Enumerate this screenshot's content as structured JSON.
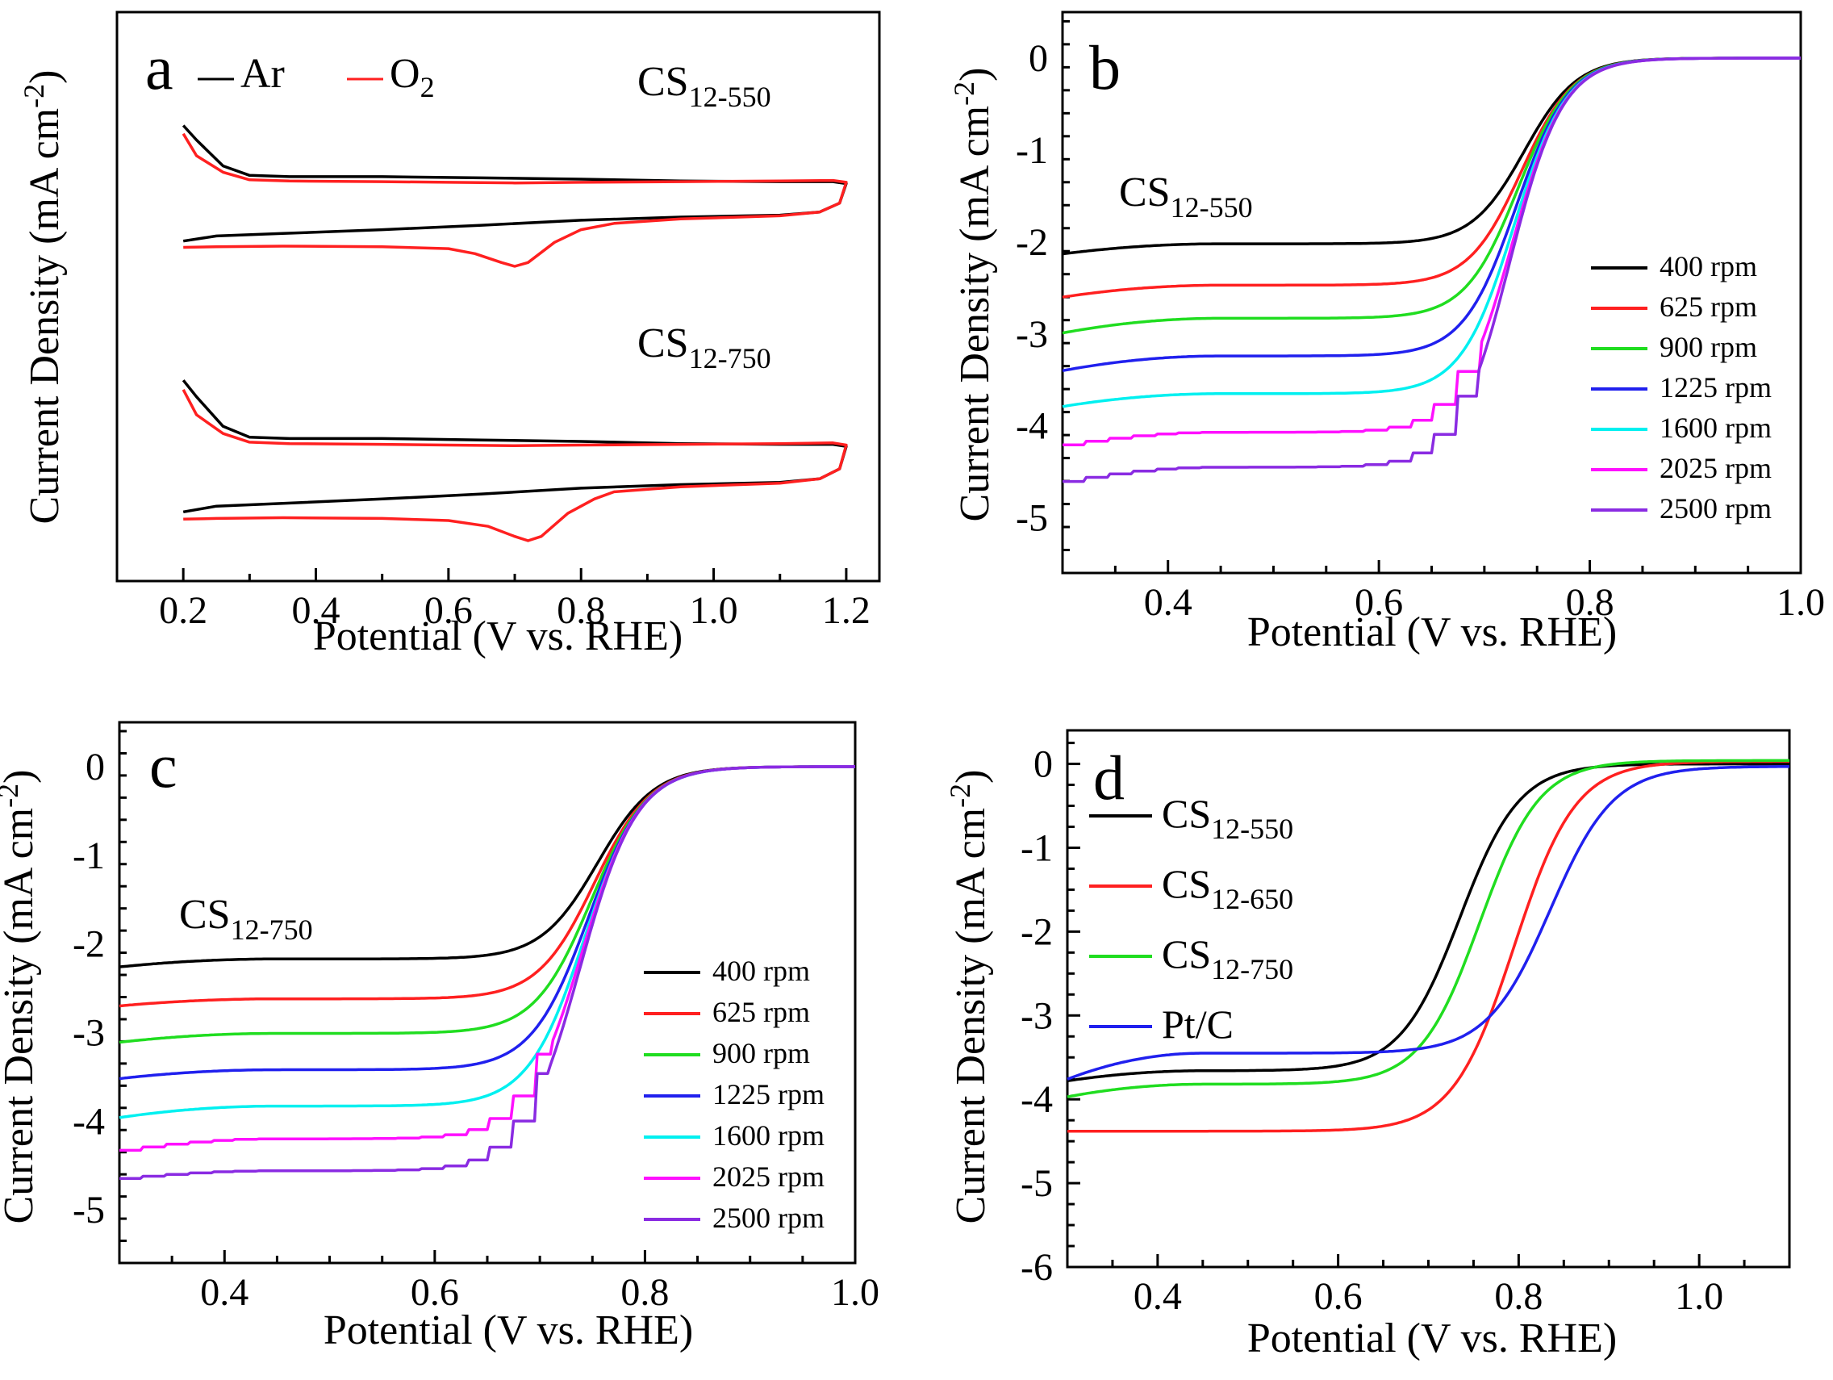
{
  "colors": {
    "black": "#000000",
    "red": "#ff2020",
    "green": "#20dd20",
    "blue": "#2020ee",
    "cyan": "#00f0f0",
    "magenta": "#ff10ff",
    "purple": "#8a2be2"
  },
  "chart_data": [
    {
      "panel": "a",
      "type": "line",
      "xlabel": "Potential (V vs. RHE)",
      "ylabel": "Current Density (mA cm",
      "ylabel_sup": "-2",
      "xlim": [
        0.1,
        1.25
      ],
      "xticks": [
        "0.2",
        "0.4",
        "0.6",
        "0.8",
        "1.0",
        "1.2"
      ],
      "legend": [
        {
          "label": "Ar",
          "color": "#000000"
        },
        {
          "label": "O",
          "sub": "2",
          "color": "#ff2020"
        }
      ],
      "samples": [
        {
          "label": "CS",
          "sub": "12-550"
        },
        {
          "label": "CS",
          "sub": "12-750"
        }
      ],
      "series": [
        {
          "name": "CS12-550 Ar",
          "color": "#000000",
          "x": [
            0.2,
            0.22,
            0.26,
            0.3,
            0.36,
            0.5,
            0.65,
            0.8,
            0.95,
            1.1,
            1.18,
            1.2,
            1.19,
            1.16,
            1.1,
            0.95,
            0.8,
            0.65,
            0.5,
            0.35,
            0.25,
            0.2
          ],
          "y": [
            1.73,
            1.5,
            1.09,
            0.94,
            0.92,
            0.92,
            0.9,
            0.88,
            0.85,
            0.84,
            0.84,
            0.81,
            0.5,
            0.36,
            0.31,
            0.28,
            0.23,
            0.15,
            0.08,
            0.02,
            -0.02,
            -0.1
          ]
        },
        {
          "name": "CS12-550 O2",
          "color": "#ff2020",
          "x": [
            0.2,
            0.22,
            0.26,
            0.3,
            0.36,
            0.5,
            0.6,
            0.7,
            0.8,
            0.95,
            1.1,
            1.18,
            1.2,
            1.19,
            1.16,
            1.1,
            0.95,
            0.85,
            0.8,
            0.76,
            0.72,
            0.7,
            0.68,
            0.64,
            0.6,
            0.5,
            0.35,
            0.25,
            0.2
          ],
          "y": [
            1.6,
            1.25,
            0.99,
            0.87,
            0.85,
            0.84,
            0.83,
            0.82,
            0.83,
            0.84,
            0.85,
            0.86,
            0.83,
            0.5,
            0.36,
            0.3,
            0.25,
            0.18,
            0.08,
            -0.12,
            -0.44,
            -0.5,
            -0.44,
            -0.3,
            -0.22,
            -0.19,
            -0.18,
            -0.19,
            -0.2
          ]
        },
        {
          "name": "CS12-750 Ar",
          "color": "#000000",
          "x": [
            0.2,
            0.22,
            0.26,
            0.3,
            0.36,
            0.5,
            0.65,
            0.8,
            0.95,
            1.1,
            1.18,
            1.2,
            1.19,
            1.16,
            1.1,
            0.95,
            0.8,
            0.65,
            0.5,
            0.35,
            0.25,
            0.2
          ],
          "y": [
            1.73,
            1.5,
            1.09,
            0.94,
            0.92,
            0.92,
            0.9,
            0.88,
            0.85,
            0.84,
            0.84,
            0.81,
            0.5,
            0.36,
            0.31,
            0.28,
            0.23,
            0.15,
            0.08,
            0.02,
            -0.02,
            -0.1
          ]
        },
        {
          "name": "CS12-750 O2",
          "color": "#ff2020",
          "x": [
            0.2,
            0.22,
            0.26,
            0.3,
            0.36,
            0.5,
            0.6,
            0.7,
            0.8,
            0.95,
            1.1,
            1.18,
            1.2,
            1.19,
            1.16,
            1.1,
            0.95,
            0.85,
            0.82,
            0.78,
            0.74,
            0.72,
            0.7,
            0.66,
            0.6,
            0.5,
            0.35,
            0.25,
            0.2
          ],
          "y": [
            1.6,
            1.25,
            0.99,
            0.87,
            0.85,
            0.84,
            0.83,
            0.82,
            0.83,
            0.84,
            0.85,
            0.86,
            0.83,
            0.5,
            0.36,
            0.3,
            0.25,
            0.18,
            0.08,
            -0.12,
            -0.44,
            -0.5,
            -0.44,
            -0.3,
            -0.22,
            -0.19,
            -0.18,
            -0.19,
            -0.2
          ]
        }
      ]
    },
    {
      "panel": "b",
      "type": "line",
      "xlabel": "Potential (V vs. RHE)",
      "ylabel": "Current Density (mA cm",
      "ylabel_sup": "-2",
      "xlim": [
        0.3,
        1.0
      ],
      "ylim": [
        -5.6,
        0.5
      ],
      "xticks": [
        "0.4",
        "0.6",
        "0.8",
        "1.0"
      ],
      "yticks": [
        "0",
        "-1",
        "-2",
        "-3",
        "-4",
        "-5"
      ],
      "sample": {
        "label": "CS",
        "sub": "12-550"
      },
      "series": [
        {
          "name": "400 rpm",
          "color": "#000000",
          "y0": -2.13,
          "plateau": -2.02,
          "e_half": 0.738,
          "width": 0.025,
          "step": false
        },
        {
          "name": "625 rpm",
          "color": "#ff2020",
          "y0": -2.6,
          "plateau": -2.47,
          "e_half": 0.735,
          "width": 0.025,
          "step": false
        },
        {
          "name": "900 rpm",
          "color": "#20dd20",
          "y0": -2.99,
          "plateau": -2.83,
          "e_half": 0.732,
          "width": 0.025,
          "step": false
        },
        {
          "name": "1225 rpm",
          "color": "#2020ee",
          "y0": -3.4,
          "plateau": -3.24,
          "e_half": 0.73,
          "width": 0.025,
          "step": false
        },
        {
          "name": "1600 rpm",
          "color": "#00f0f0",
          "y0": -3.79,
          "plateau": -3.65,
          "e_half": 0.728,
          "width": 0.025,
          "step": false
        },
        {
          "name": "2025 rpm",
          "color": "#ff10ff",
          "y0": -4.23,
          "plateau": -4.07,
          "e_half": 0.726,
          "width": 0.025,
          "step": true
        },
        {
          "name": "2500 rpm",
          "color": "#8a2be2",
          "y0": -4.63,
          "plateau": -4.45,
          "e_half": 0.724,
          "width": 0.025,
          "step": true
        }
      ]
    },
    {
      "panel": "c",
      "type": "line",
      "xlabel": "Potential (V vs. RHE)",
      "ylabel": "Current Density (mA cm",
      "ylabel_sup": "-2",
      "xlim": [
        0.3,
        1.0
      ],
      "ylim": [
        -5.6,
        0.5
      ],
      "xticks": [
        "0.4",
        "0.6",
        "0.8",
        "1.0"
      ],
      "yticks": [
        "0",
        "-1",
        "-2",
        "-3",
        "-4",
        "-5"
      ],
      "sample": {
        "label": "CS",
        "sub": "12-750"
      },
      "series": [
        {
          "name": "400 rpm",
          "color": "#000000",
          "y0": -2.26,
          "plateau": -2.17,
          "e_half": 0.755,
          "width": 0.027,
          "step": false
        },
        {
          "name": "625 rpm",
          "color": "#ff2020",
          "y0": -2.7,
          "plateau": -2.62,
          "e_half": 0.752,
          "width": 0.027,
          "step": false
        },
        {
          "name": "900 rpm",
          "color": "#20dd20",
          "y0": -3.11,
          "plateau": -3.01,
          "e_half": 0.749,
          "width": 0.027,
          "step": false
        },
        {
          "name": "1225 rpm",
          "color": "#2020ee",
          "y0": -3.52,
          "plateau": -3.42,
          "e_half": 0.746,
          "width": 0.027,
          "step": false
        },
        {
          "name": "1600 rpm",
          "color": "#00f0f0",
          "y0": -3.96,
          "plateau": -3.83,
          "e_half": 0.743,
          "width": 0.027,
          "step": false
        },
        {
          "name": "2025 rpm",
          "color": "#ff10ff",
          "y0": -4.35,
          "plateau": -4.2,
          "e_half": 0.74,
          "width": 0.027,
          "step": true
        },
        {
          "name": "2500 rpm",
          "color": "#8a2be2",
          "y0": -4.66,
          "plateau": -4.56,
          "e_half": 0.738,
          "width": 0.027,
          "step": true
        }
      ]
    },
    {
      "panel": "d",
      "type": "line",
      "xlabel": "Potential (V vs. RHE)",
      "ylabel": "Current Density (mA cm",
      "ylabel_sup": "-2",
      "xlim": [
        0.3,
        1.1
      ],
      "ylim": [
        -6,
        0.4
      ],
      "xticks": [
        "0.4",
        "0.6",
        "0.8",
        "1.0"
      ],
      "yticks": [
        "0",
        "-1",
        "-2",
        "-3",
        "-4",
        "-5",
        "-6"
      ],
      "legend": [
        {
          "label": "CS",
          "sub": "12-550",
          "color": "#000000"
        },
        {
          "label": "CS",
          "sub": "12-650",
          "color": "#ff2020"
        },
        {
          "label": "CS",
          "sub": "12-750",
          "color": "#20dd20"
        },
        {
          "label": "Pt/C",
          "sub": "",
          "color": "#2020ee"
        }
      ],
      "series": [
        {
          "name": "CS12-550",
          "color": "#000000",
          "y0": -3.78,
          "plateau": -3.66,
          "e_half": 0.735,
          "width": 0.033,
          "tail": 0.0
        },
        {
          "name": "CS12-650",
          "color": "#ff2020",
          "y0": -4.38,
          "plateau": -4.38,
          "e_half": 0.795,
          "width": 0.034,
          "tail": 0.03
        },
        {
          "name": "CS12-750",
          "color": "#20dd20",
          "y0": -3.97,
          "plateau": -3.82,
          "e_half": 0.757,
          "width": 0.033,
          "tail": 0.04
        },
        {
          "name": "Pt/C",
          "color": "#2020ee",
          "y0": -3.76,
          "plateau": -3.45,
          "e_half": 0.835,
          "width": 0.035,
          "tail": -0.03
        }
      ]
    }
  ]
}
